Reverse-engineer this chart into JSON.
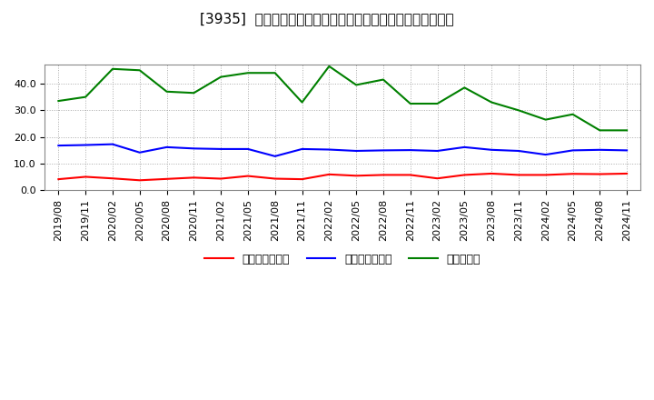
{
  "title": "[3935]  売上債権回転率、買入債務回転率、在庫回転率の推移",
  "x_labels": [
    "2019/08",
    "2019/11",
    "2020/02",
    "2020/05",
    "2020/08",
    "2020/11",
    "2021/02",
    "2021/05",
    "2021/08",
    "2021/11",
    "2022/02",
    "2022/05",
    "2022/08",
    "2022/11",
    "2023/02",
    "2023/05",
    "2023/08",
    "2023/11",
    "2024/02",
    "2024/05",
    "2024/08",
    "2024/11"
  ],
  "accounts_receivable_turnover": [
    4.2,
    5.1,
    4.5,
    3.8,
    4.3,
    4.8,
    4.4,
    5.4,
    4.4,
    4.2,
    6.0,
    5.5,
    5.8,
    5.8,
    4.5,
    5.8,
    6.3,
    5.8,
    5.8,
    6.2,
    6.1,
    6.3
  ],
  "accounts_payable_turnover": [
    16.8,
    17.0,
    17.3,
    14.2,
    16.2,
    15.7,
    15.5,
    15.5,
    12.8,
    15.5,
    15.3,
    14.8,
    15.0,
    15.1,
    14.8,
    16.2,
    15.2,
    14.8,
    13.4,
    15.0,
    15.2,
    15.0
  ],
  "inventory_turnover": [
    33.5,
    35.0,
    45.5,
    45.0,
    37.0,
    36.5,
    42.5,
    44.0,
    44.0,
    33.0,
    46.5,
    39.5,
    41.5,
    32.5,
    32.5,
    38.5,
    33.0,
    30.0,
    26.5,
    28.5,
    22.5,
    22.5
  ],
  "line_colors": {
    "accounts_receivable": "#ff0000",
    "accounts_payable": "#0000ff",
    "inventory": "#008000"
  },
  "legend_labels": [
    "売上債権回転率",
    "買入債務回転率",
    "在庫回転率"
  ],
  "ylim": [
    0.0,
    47.0
  ],
  "yticks": [
    0.0,
    10.0,
    20.0,
    30.0,
    40.0
  ],
  "background_color": "#ffffff",
  "plot_bg_color": "#ffffff",
  "grid_color": "#aaaaaa",
  "title_fontsize": 11,
  "tick_fontsize": 8,
  "legend_fontsize": 9
}
